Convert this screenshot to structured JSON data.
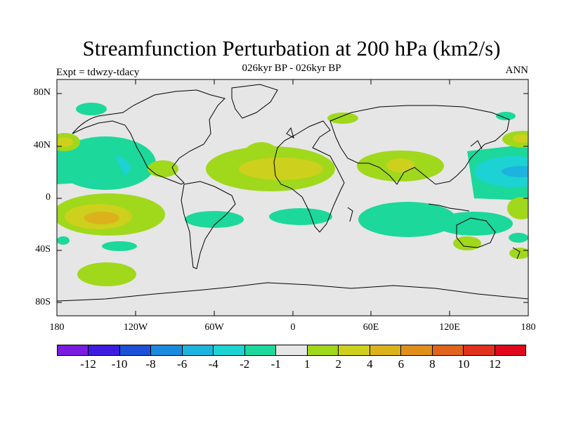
{
  "title": "Streamfunction Perturbation at 200 hPa (km2/s)",
  "subtitle": "026kyr BP - 026kyr BP",
  "expt_label": "Expt = tdwzy-tdacy",
  "season_label": "ANN",
  "lat_labels": [
    "80N",
    "40N",
    "0",
    "40S",
    "80S"
  ],
  "lon_labels": [
    "180",
    "120W",
    "60W",
    "0",
    "60E",
    "120E",
    "180"
  ],
  "colorbar": {
    "colors": [
      "#7a1ce0",
      "#3d1cdf",
      "#1c50d6",
      "#1c8ade",
      "#1cb4de",
      "#1cd2d2",
      "#1cd89a",
      "#e6e6e6",
      "#a0d81c",
      "#cdd01c",
      "#dcb21c",
      "#e08e1c",
      "#e0641c",
      "#e0321c",
      "#e0081c"
    ],
    "labels": [
      "-12",
      "-10",
      "-8",
      "-6",
      "-4",
      "-2",
      "-1",
      "1",
      "2",
      "4",
      "6",
      "8",
      "10",
      "12"
    ]
  },
  "map_colors": {
    "background": "#e6e6e6",
    "coast": "#000000"
  }
}
